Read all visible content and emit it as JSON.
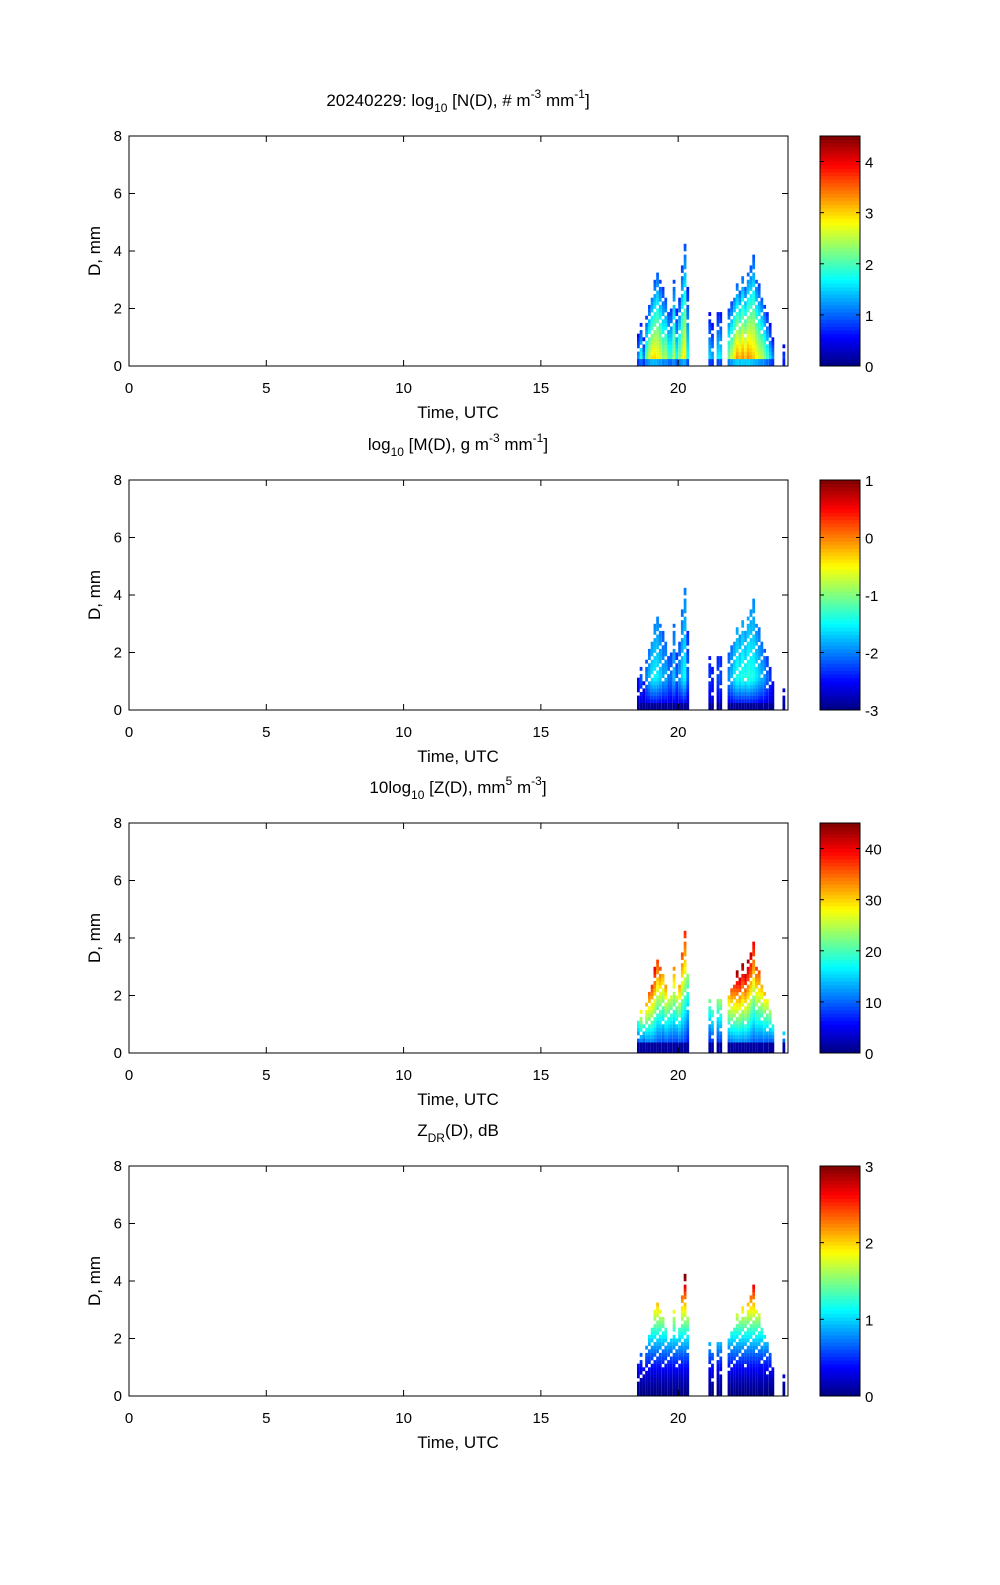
{
  "chart_data": {
    "type": "heatmap",
    "date": "20240229",
    "xlabel": "Time, UTC",
    "ylabel": "D, mm",
    "xlim": [
      0,
      24
    ],
    "ylim": [
      0,
      8
    ],
    "xticks": [
      "0",
      "5",
      "10",
      "15",
      "20"
    ],
    "xtick_values": [
      0,
      5,
      10,
      15,
      20
    ],
    "yticks": [
      "0",
      "2",
      "4",
      "6",
      "8"
    ],
    "ytick_values": [
      0,
      2,
      4,
      6,
      8
    ],
    "time_bin_h": 0.1,
    "d_bin_mm": 0.125,
    "columns": {
      "time_h": [
        18.5,
        18.6,
        18.7,
        18.8,
        18.9,
        19.0,
        19.1,
        19.2,
        19.3,
        19.4,
        19.5,
        19.6,
        19.7,
        19.8,
        19.9,
        20.0,
        20.1,
        20.2,
        20.3,
        21.1,
        21.2,
        21.4,
        21.5,
        21.8,
        21.9,
        22.0,
        22.1,
        22.2,
        22.3,
        22.4,
        22.5,
        22.6,
        22.7,
        22.8,
        22.9,
        23.0,
        23.1,
        23.2,
        23.3,
        23.4,
        23.8
      ],
      "dmax_mm": [
        1.2,
        1.5,
        1.1,
        1.8,
        2.2,
        2.6,
        3.0,
        3.4,
        3.0,
        2.8,
        2.5,
        2.1,
        2.2,
        3.1,
        2.0,
        2.4,
        3.5,
        4.3,
        2.9,
        1.9,
        1.5,
        2.0,
        1.9,
        2.1,
        2.3,
        2.6,
        2.9,
        2.7,
        3.2,
        2.8,
        3.3,
        3.5,
        3.9,
        3.1,
        2.9,
        2.6,
        2.2,
        1.9,
        1.5,
        1.1,
        0.8
      ],
      "intensity": [
        0.4,
        0.6,
        0.4,
        0.7,
        0.8,
        0.9,
        0.9,
        0.85,
        0.8,
        0.7,
        0.75,
        0.6,
        0.6,
        0.75,
        0.55,
        0.7,
        0.8,
        0.85,
        0.5,
        0.45,
        0.4,
        0.5,
        0.5,
        0.7,
        0.8,
        0.9,
        1.0,
        0.95,
        1.0,
        0.95,
        1.0,
        0.95,
        0.9,
        0.85,
        0.8,
        0.75,
        0.7,
        0.6,
        0.5,
        0.4,
        0.3
      ]
    },
    "panels": [
      {
        "id": "nd",
        "title_parts": [
          "20240229: log",
          "10",
          " [N(D), # m",
          "-3",
          " mm",
          "-1",
          "]"
        ],
        "clim": [
          0,
          4.5
        ],
        "cticks": [
          "0",
          "1",
          "2",
          "3",
          "4"
        ],
        "ctick_values": [
          0,
          1,
          2,
          3,
          4
        ]
      },
      {
        "id": "md",
        "title_parts": [
          "log",
          "10",
          " [M(D), g m",
          "-3",
          " mm",
          "-1",
          "]"
        ],
        "clim": [
          -3,
          1
        ],
        "cticks": [
          "-3",
          "-2",
          "-1",
          "0",
          "1"
        ],
        "ctick_values": [
          -3,
          -2,
          -1,
          0,
          1
        ]
      },
      {
        "id": "zd",
        "title_parts": [
          "10log",
          "10",
          " [Z(D),  mm",
          "5",
          " m",
          "-3",
          "]"
        ],
        "clim": [
          0,
          45
        ],
        "cticks": [
          "0",
          "10",
          "20",
          "30",
          "40"
        ],
        "ctick_values": [
          0,
          10,
          20,
          30,
          40
        ]
      },
      {
        "id": "zdr",
        "title_parts": [
          "Z",
          "DR",
          "(D), dB"
        ],
        "clim": [
          0,
          3
        ],
        "cticks": [
          "0",
          "1",
          "2",
          "3"
        ],
        "ctick_values": [
          0,
          1,
          2,
          3
        ]
      }
    ]
  }
}
